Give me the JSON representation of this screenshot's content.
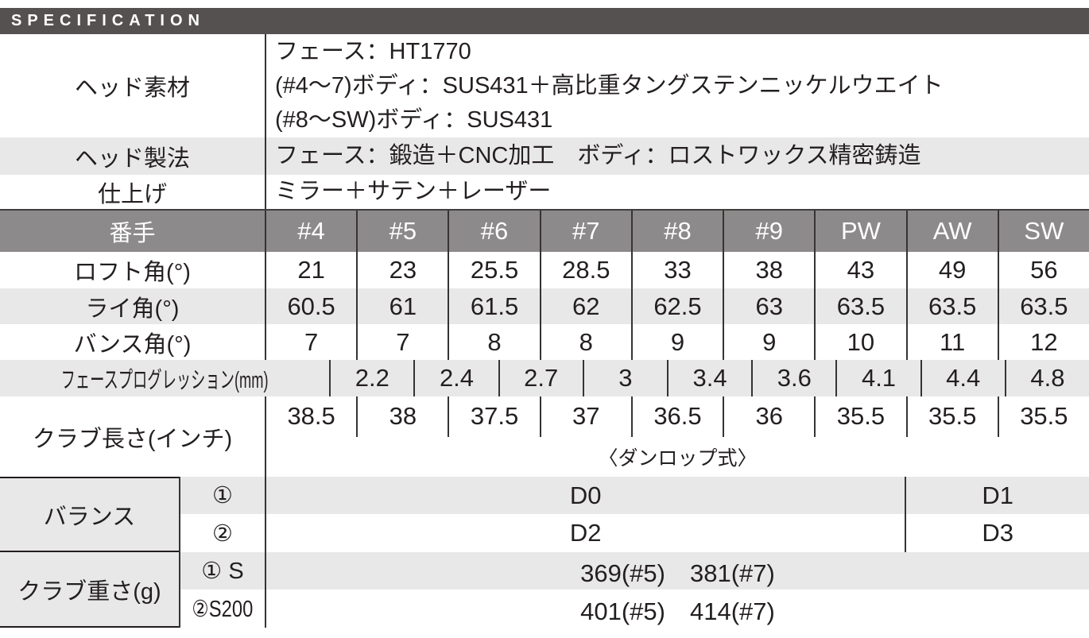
{
  "title": "SPECIFICATION",
  "colors": {
    "title_bar_bg": "#555150",
    "club_header_bg": "#8c8a8a",
    "alt_row_bg": "#e9e8e8",
    "text": "#231f20",
    "divider": "#373334"
  },
  "info_rows": [
    {
      "label": "ヘッド素材",
      "lines": [
        "フェース：HT1770",
        "(#4〜7)ボディ：SUS431＋高比重タングステンニッケルウエイト",
        "(#8〜SW)ボディ：SUS431"
      ]
    },
    {
      "label": "ヘッド製法",
      "lines": [
        "フェース：鍛造＋CNC加工　ボディ：ロストワックス精密鋳造"
      ]
    },
    {
      "label": "仕上げ",
      "lines": [
        "ミラー＋サテン＋レーザー"
      ]
    }
  ],
  "club_table": {
    "header_label": "番手",
    "columns": [
      "#4",
      "#5",
      "#6",
      "#7",
      "#8",
      "#9",
      "PW",
      "AW",
      "SW"
    ],
    "rows": [
      {
        "label": "ロフト角(°)",
        "values": [
          "21",
          "23",
          "25.5",
          "28.5",
          "33",
          "38",
          "43",
          "49",
          "56"
        ]
      },
      {
        "label": "ライ角(°)",
        "values": [
          "60.5",
          "61",
          "61.5",
          "62",
          "62.5",
          "63",
          "63.5",
          "63.5",
          "63.5"
        ]
      },
      {
        "label": "バンス角(°)",
        "values": [
          "7",
          "7",
          "8",
          "8",
          "9",
          "9",
          "10",
          "11",
          "12"
        ]
      },
      {
        "label": "フェースプログレッション(mm)",
        "values": [
          "2.2",
          "2.4",
          "2.7",
          "3",
          "3.4",
          "3.6",
          "4.1",
          "4.4",
          "4.8"
        ]
      },
      {
        "label": "クラブ長さ(インチ)",
        "values": [
          "38.5",
          "38",
          "37.5",
          "37",
          "36.5",
          "36",
          "35.5",
          "35.5",
          "35.5"
        ]
      }
    ],
    "length_note": "〈ダンロップ式〉"
  },
  "balance": {
    "label": "バランス",
    "rows": [
      {
        "sub": "①",
        "left": "D0",
        "right": "D1"
      },
      {
        "sub": "②",
        "left": "D2",
        "right": "D3"
      }
    ]
  },
  "weight": {
    "label": "クラブ重さ(g)",
    "rows": [
      {
        "sub": "① S",
        "value": "369(#5)　381(#7)"
      },
      {
        "sub": "②S200",
        "value": "401(#5)　414(#7)"
      }
    ]
  }
}
